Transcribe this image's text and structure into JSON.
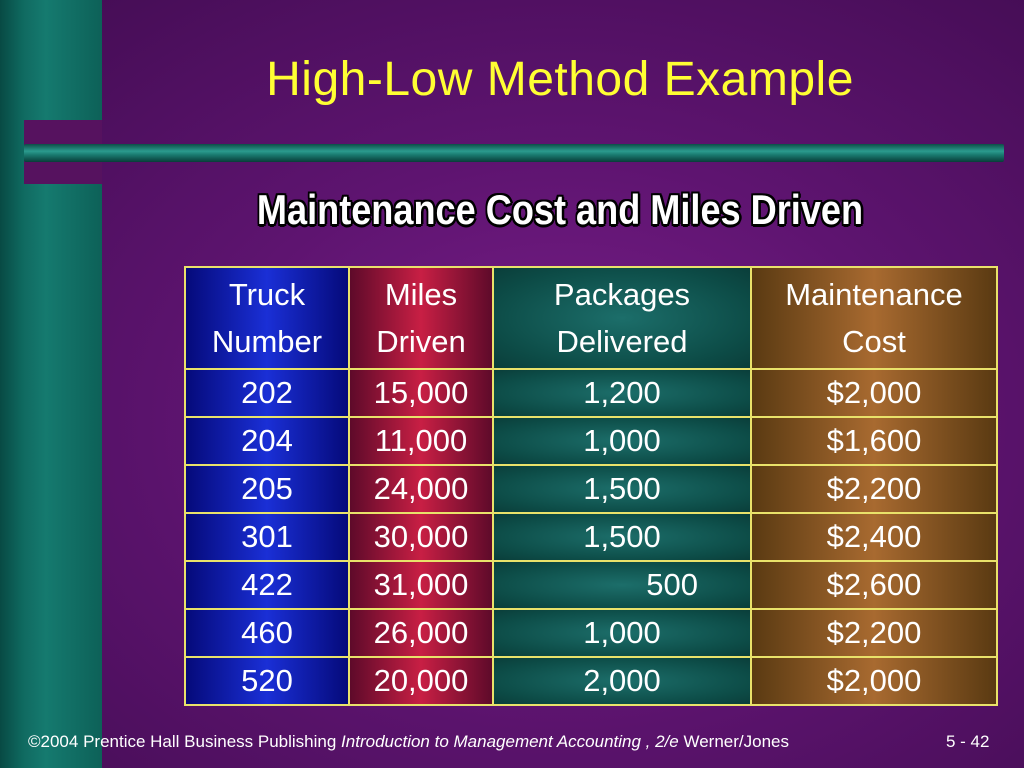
{
  "slide": {
    "title": "High-Low Method Example",
    "subtitle": "Maintenance Cost and Miles Driven"
  },
  "table": {
    "headers": [
      [
        "Truck",
        "Number"
      ],
      [
        "Miles",
        "Driven"
      ],
      [
        "Packages",
        "Delivered"
      ],
      [
        "Maintenance",
        "Cost"
      ]
    ],
    "rows": [
      [
        "202",
        "15,000",
        "1,200",
        "$2,000"
      ],
      [
        "204",
        "11,000",
        "1,000",
        "$1,600"
      ],
      [
        "205",
        "24,000",
        "1,500",
        "$2,200"
      ],
      [
        "301",
        "30,000",
        "1,500",
        "$2,400"
      ],
      [
        "422",
        "31,000",
        "500",
        "$2,600"
      ],
      [
        "460",
        "26,000",
        "1,000",
        "$2,200"
      ],
      [
        "520",
        "20,000",
        "2,000",
        "$2,000"
      ]
    ]
  },
  "footer": {
    "copyright": "©2004 Prentice Hall Business Publishing",
    "book": "Introduction to Management Accounting , 2/e",
    "authors": "Werner/Jones",
    "page": "5 - 42"
  },
  "colors": {
    "background": "#5e1470",
    "teal_band": "#157a6f",
    "title_yellow": "#ffff33",
    "col_truck": "#1a2fd6",
    "col_miles": "#c81f44",
    "col_packages": "#1c6e6a",
    "col_cost": "#a86a30",
    "cell_border": "#e9e26a"
  }
}
